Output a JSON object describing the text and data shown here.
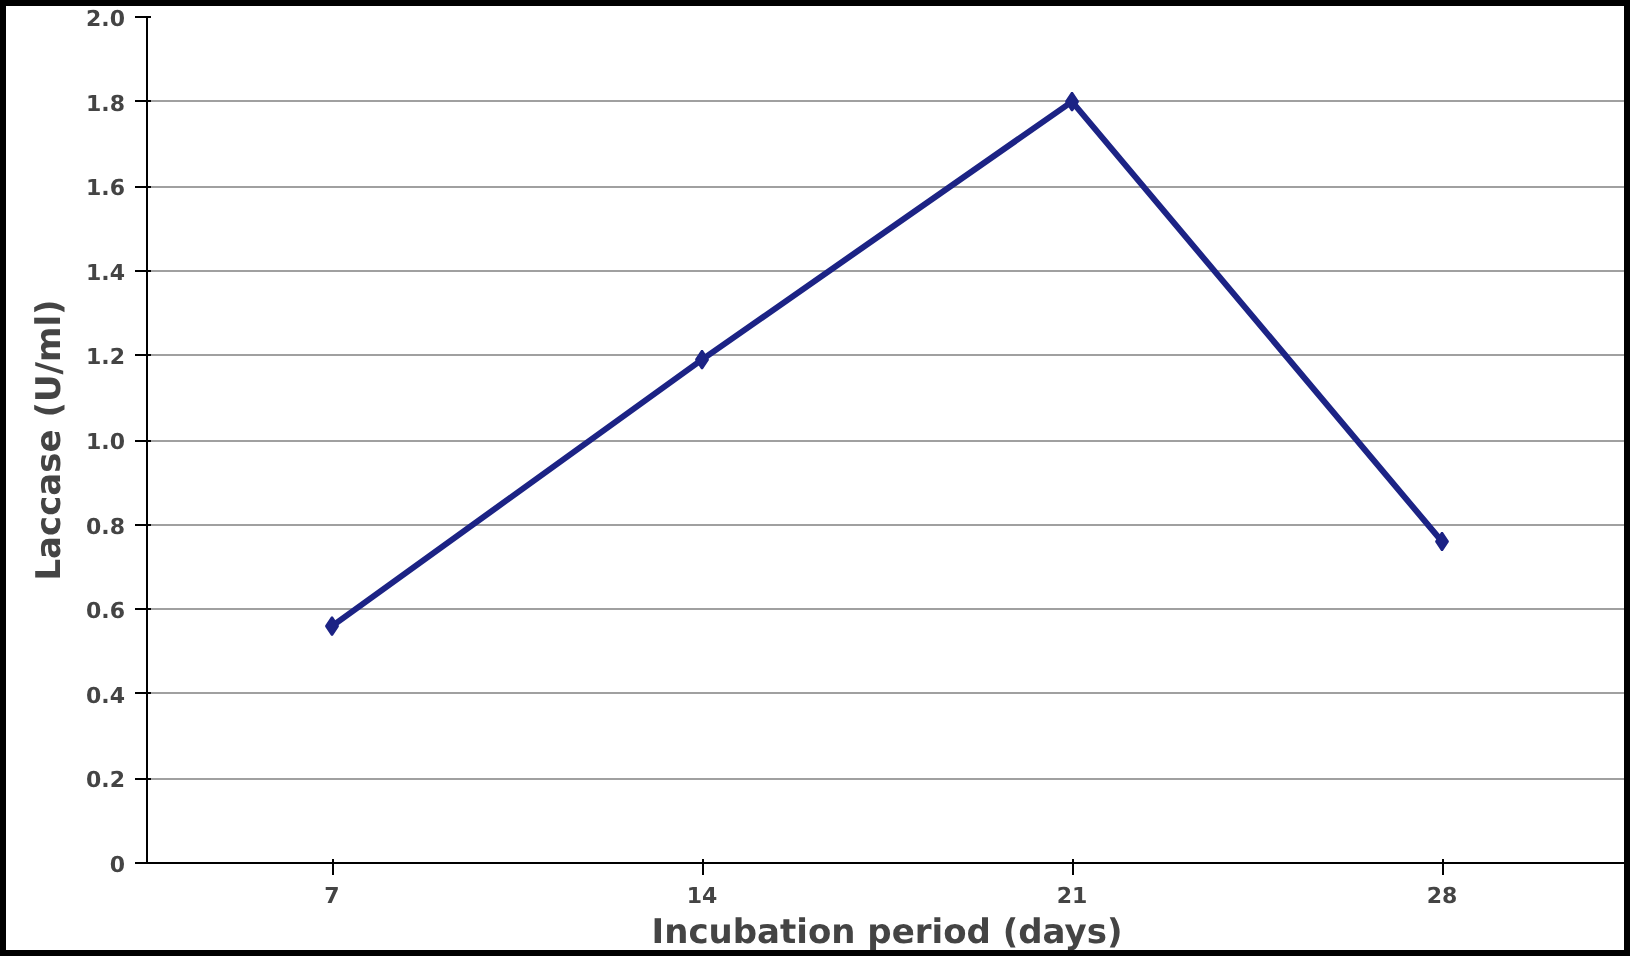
{
  "chart_data": {
    "type": "line",
    "xlabel": "Incubation period (days)",
    "ylabel": "Laccase (U/ml)",
    "categories": [
      "7",
      "14",
      "21",
      "28"
    ],
    "series": [
      {
        "color": "#1c2385",
        "values": [
          0.56,
          1.19,
          1.8,
          0.76
        ]
      }
    ],
    "ylim": [
      0,
      2
    ],
    "yticks": [
      0,
      0.2,
      0.4,
      0.6,
      0.8,
      {
        "value": 1,
        "label": "1.0"
      },
      1.2,
      1.4,
      1.6,
      1.8,
      {
        "value": 2,
        "label": "2.0"
      }
    ],
    "grid": "y",
    "marker": "diamond",
    "line_style": "solid"
  }
}
